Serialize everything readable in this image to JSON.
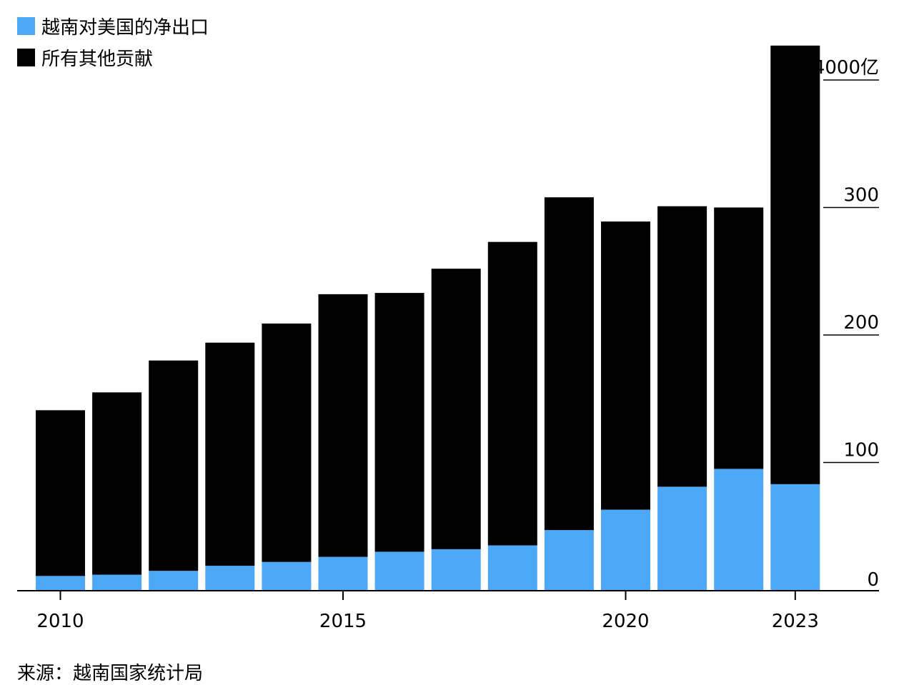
{
  "legend": {
    "items": [
      {
        "label": "越南对美国的净出口",
        "color": "#4DA9F8"
      },
      {
        "label": "所有其他贡献",
        "color": "#000000"
      }
    ]
  },
  "source": "来源：越南国家统计局",
  "chart_data": {
    "type": "bar",
    "stacked": true,
    "x": [
      2010,
      2011,
      2012,
      2013,
      2014,
      2015,
      2016,
      2017,
      2018,
      2019,
      2020,
      2021,
      2022,
      2023
    ],
    "x_tick_labels": [
      "2010",
      "2015",
      "2020",
      "2023"
    ],
    "x_tick_values": [
      2010,
      2015,
      2020,
      2023
    ],
    "series": [
      {
        "name": "越南对美国的净出口",
        "color": "#4DA9F8",
        "values": [
          11,
          12,
          15,
          19,
          22,
          26,
          30,
          32,
          35,
          47,
          63,
          81,
          95,
          83
        ]
      },
      {
        "name": "所有其他贡献",
        "color": "#000000",
        "values": [
          130,
          143,
          165,
          175,
          187,
          206,
          203,
          220,
          238,
          261,
          226,
          220,
          205,
          344
        ]
      }
    ],
    "y_tick_labels": [
      "0",
      "100",
      "200",
      "300",
      "4000亿"
    ],
    "y_tick_values": [
      0,
      100,
      200,
      300,
      400
    ],
    "ylim": [
      0,
      427
    ],
    "y_axis_position": "right",
    "legend_position": "top-left"
  }
}
